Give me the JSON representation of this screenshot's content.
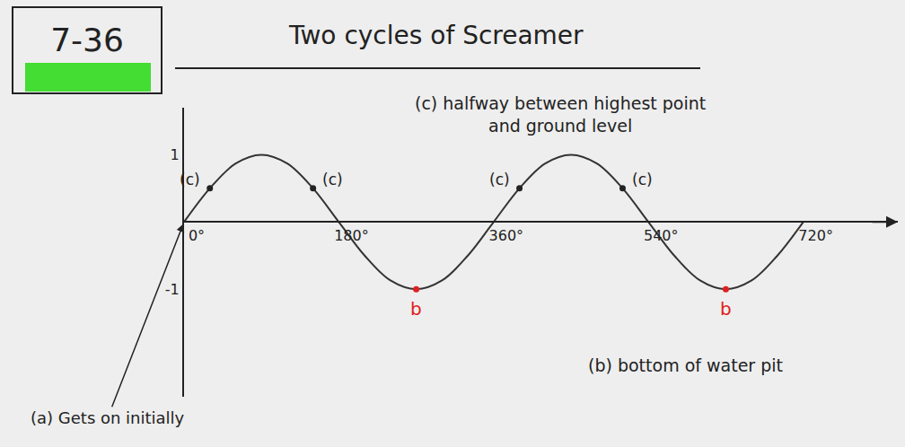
{
  "chart_data": {
    "type": "line",
    "title": "7-36",
    "subtitle": "Two cycles of Screamer",
    "x": [
      0,
      30,
      60,
      90,
      120,
      150,
      180,
      210,
      240,
      270,
      300,
      330,
      360,
      390,
      420,
      450,
      480,
      510,
      540,
      570,
      600,
      630,
      660,
      690,
      720
    ],
    "values": [
      0,
      0.5,
      0.87,
      1,
      0.87,
      0.5,
      0,
      -0.5,
      -0.87,
      -1,
      -0.87,
      -0.5,
      0,
      0.5,
      0.87,
      1,
      0.87,
      0.5,
      0,
      -0.5,
      -0.87,
      -1,
      -0.87,
      -0.5,
      0
    ],
    "color": "#333333",
    "xlim": [
      0,
      830
    ],
    "ylim": [
      -2.6,
      1.7
    ],
    "xticks": [
      {
        "value": 0,
        "label": "0°"
      },
      {
        "value": 180,
        "label": "180°"
      },
      {
        "value": 360,
        "label": "360°"
      },
      {
        "value": 540,
        "label": "540°"
      },
      {
        "value": 720,
        "label": "720°"
      }
    ],
    "yticks": [
      -1,
      1
    ],
    "grid": false,
    "annotations": [
      {
        "text": "(a) Gets on initially",
        "x": 0,
        "y": 0,
        "line_style": "arrow"
      },
      {
        "text": "(b) bottom of water pit",
        "x": 583,
        "y": -2.13
      },
      {
        "text": "(c) halfway between highest point and ground level",
        "x": 437,
        "y": 1.6
      },
      {
        "text": "(c)",
        "x": 30,
        "y": 0.5,
        "marker": "circle"
      },
      {
        "text": "(c)",
        "x": 150,
        "y": 0.5,
        "marker": "circle"
      },
      {
        "text": "(c)",
        "x": 390,
        "y": 0.5,
        "marker": "circle"
      },
      {
        "text": "(c)",
        "x": 510,
        "y": 0.5,
        "marker": "circle"
      },
      {
        "text": "b",
        "x": 270,
        "y": -1,
        "marker": "circle",
        "color": "#e02020"
      },
      {
        "text": "b",
        "x": 630,
        "y": -1,
        "marker": "circle",
        "color": "#e02020"
      }
    ]
  }
}
